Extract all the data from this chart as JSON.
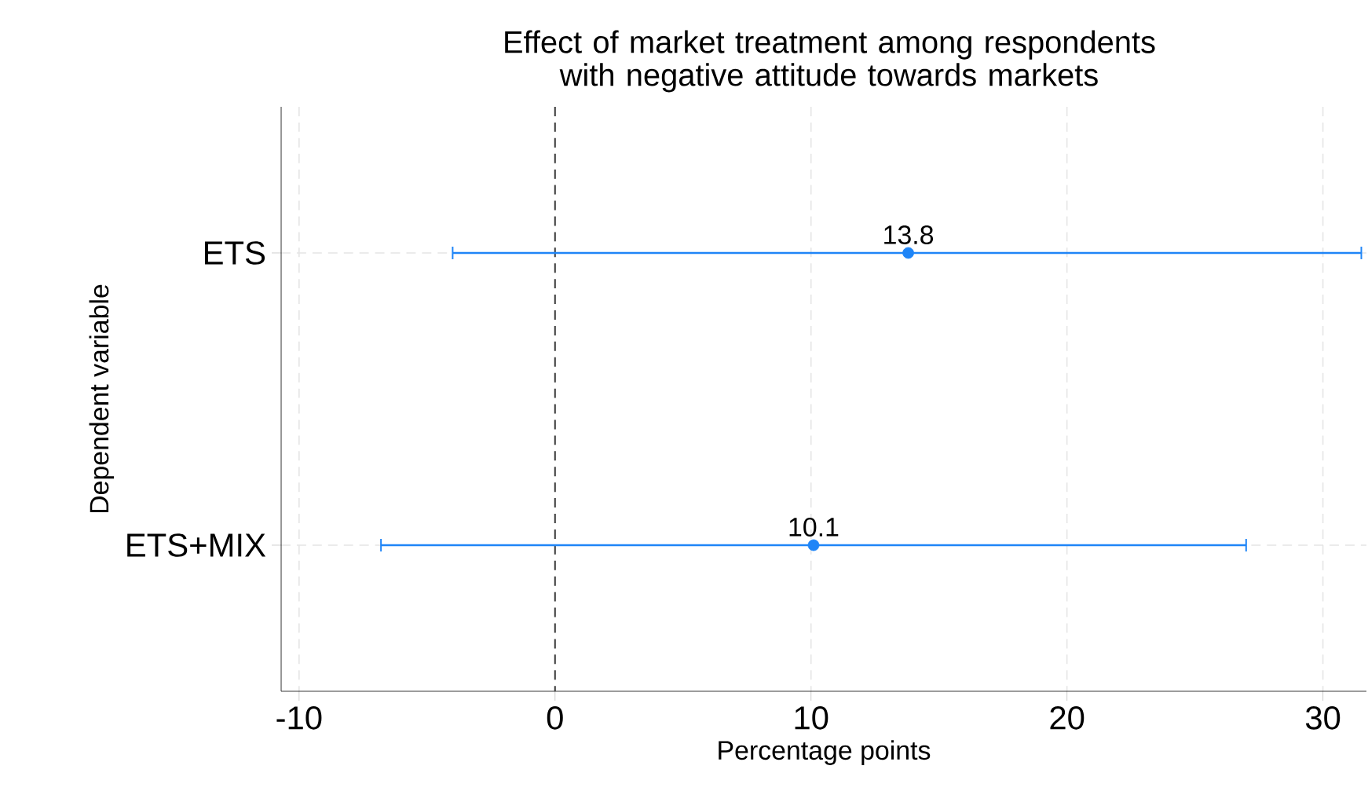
{
  "chart_data": {
    "type": "scatter",
    "orientation": "horizontal",
    "title": "Effect of market treatment among respondents with negative attitude towards markets",
    "xlabel": "Percentage points",
    "ylabel": "Dependent variable",
    "categories": [
      "ETS",
      "ETS+MIX"
    ],
    "values": [
      13.8,
      10.1
    ],
    "errors": [
      [
        -4.0,
        31.5
      ],
      [
        -6.8,
        27.0
      ]
    ],
    "color": "#1f85f7",
    "marker": "circle",
    "data_labels": true,
    "xlim": [
      -10.7,
      31.7
    ],
    "xticks": [
      -10,
      0,
      10,
      20,
      30
    ],
    "grid": true,
    "ref_lines": [
      {
        "axis": "x",
        "value": 0,
        "color": "#3a3a3a",
        "line_style": "dashed"
      }
    ]
  }
}
